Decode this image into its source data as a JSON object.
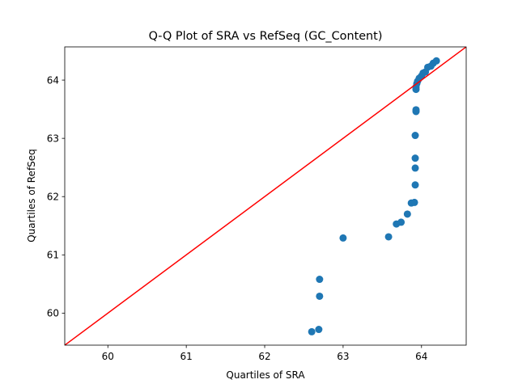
{
  "chart_data": {
    "type": "scatter",
    "title": "Q-Q Plot of SRA vs RefSeq (GC_Content)",
    "xlabel": "Quartiles of SRA",
    "ylabel": "Quartiles of RefSeq",
    "xlim": [
      59.45,
      64.57
    ],
    "ylim": [
      59.45,
      64.57
    ],
    "xticks": [
      60,
      61,
      62,
      63,
      64
    ],
    "yticks": [
      60,
      61,
      62,
      63,
      64
    ],
    "xtick_labels": [
      "60",
      "61",
      "62",
      "63",
      "64"
    ],
    "ytick_labels": [
      "60",
      "61",
      "62",
      "63",
      "64"
    ],
    "grid": false,
    "reference_line": {
      "color": "#ff0000",
      "from": [
        59.45,
        59.45
      ],
      "to": [
        64.57,
        64.57
      ]
    },
    "series": [
      {
        "color": "#1f77b4",
        "points": [
          {
            "x": 62.6,
            "y": 59.68
          },
          {
            "x": 62.69,
            "y": 59.72
          },
          {
            "x": 62.7,
            "y": 60.29
          },
          {
            "x": 62.7,
            "y": 60.58
          },
          {
            "x": 63.0,
            "y": 61.29
          },
          {
            "x": 63.58,
            "y": 61.31
          },
          {
            "x": 63.68,
            "y": 61.53
          },
          {
            "x": 63.74,
            "y": 61.56
          },
          {
            "x": 63.82,
            "y": 61.7
          },
          {
            "x": 63.87,
            "y": 61.89
          },
          {
            "x": 63.91,
            "y": 61.9
          },
          {
            "x": 63.92,
            "y": 62.2
          },
          {
            "x": 63.92,
            "y": 62.49
          },
          {
            "x": 63.92,
            "y": 62.66
          },
          {
            "x": 63.92,
            "y": 63.05
          },
          {
            "x": 63.93,
            "y": 63.46
          },
          {
            "x": 63.93,
            "y": 63.49
          },
          {
            "x": 63.93,
            "y": 63.84
          },
          {
            "x": 63.93,
            "y": 63.88
          },
          {
            "x": 63.94,
            "y": 63.94
          },
          {
            "x": 63.95,
            "y": 63.98
          },
          {
            "x": 63.97,
            "y": 64.03
          },
          {
            "x": 64.0,
            "y": 64.07
          },
          {
            "x": 64.02,
            "y": 64.12
          },
          {
            "x": 64.05,
            "y": 64.14
          },
          {
            "x": 64.08,
            "y": 64.22
          },
          {
            "x": 64.12,
            "y": 64.24
          },
          {
            "x": 64.15,
            "y": 64.29
          },
          {
            "x": 64.19,
            "y": 64.33
          }
        ]
      }
    ]
  }
}
